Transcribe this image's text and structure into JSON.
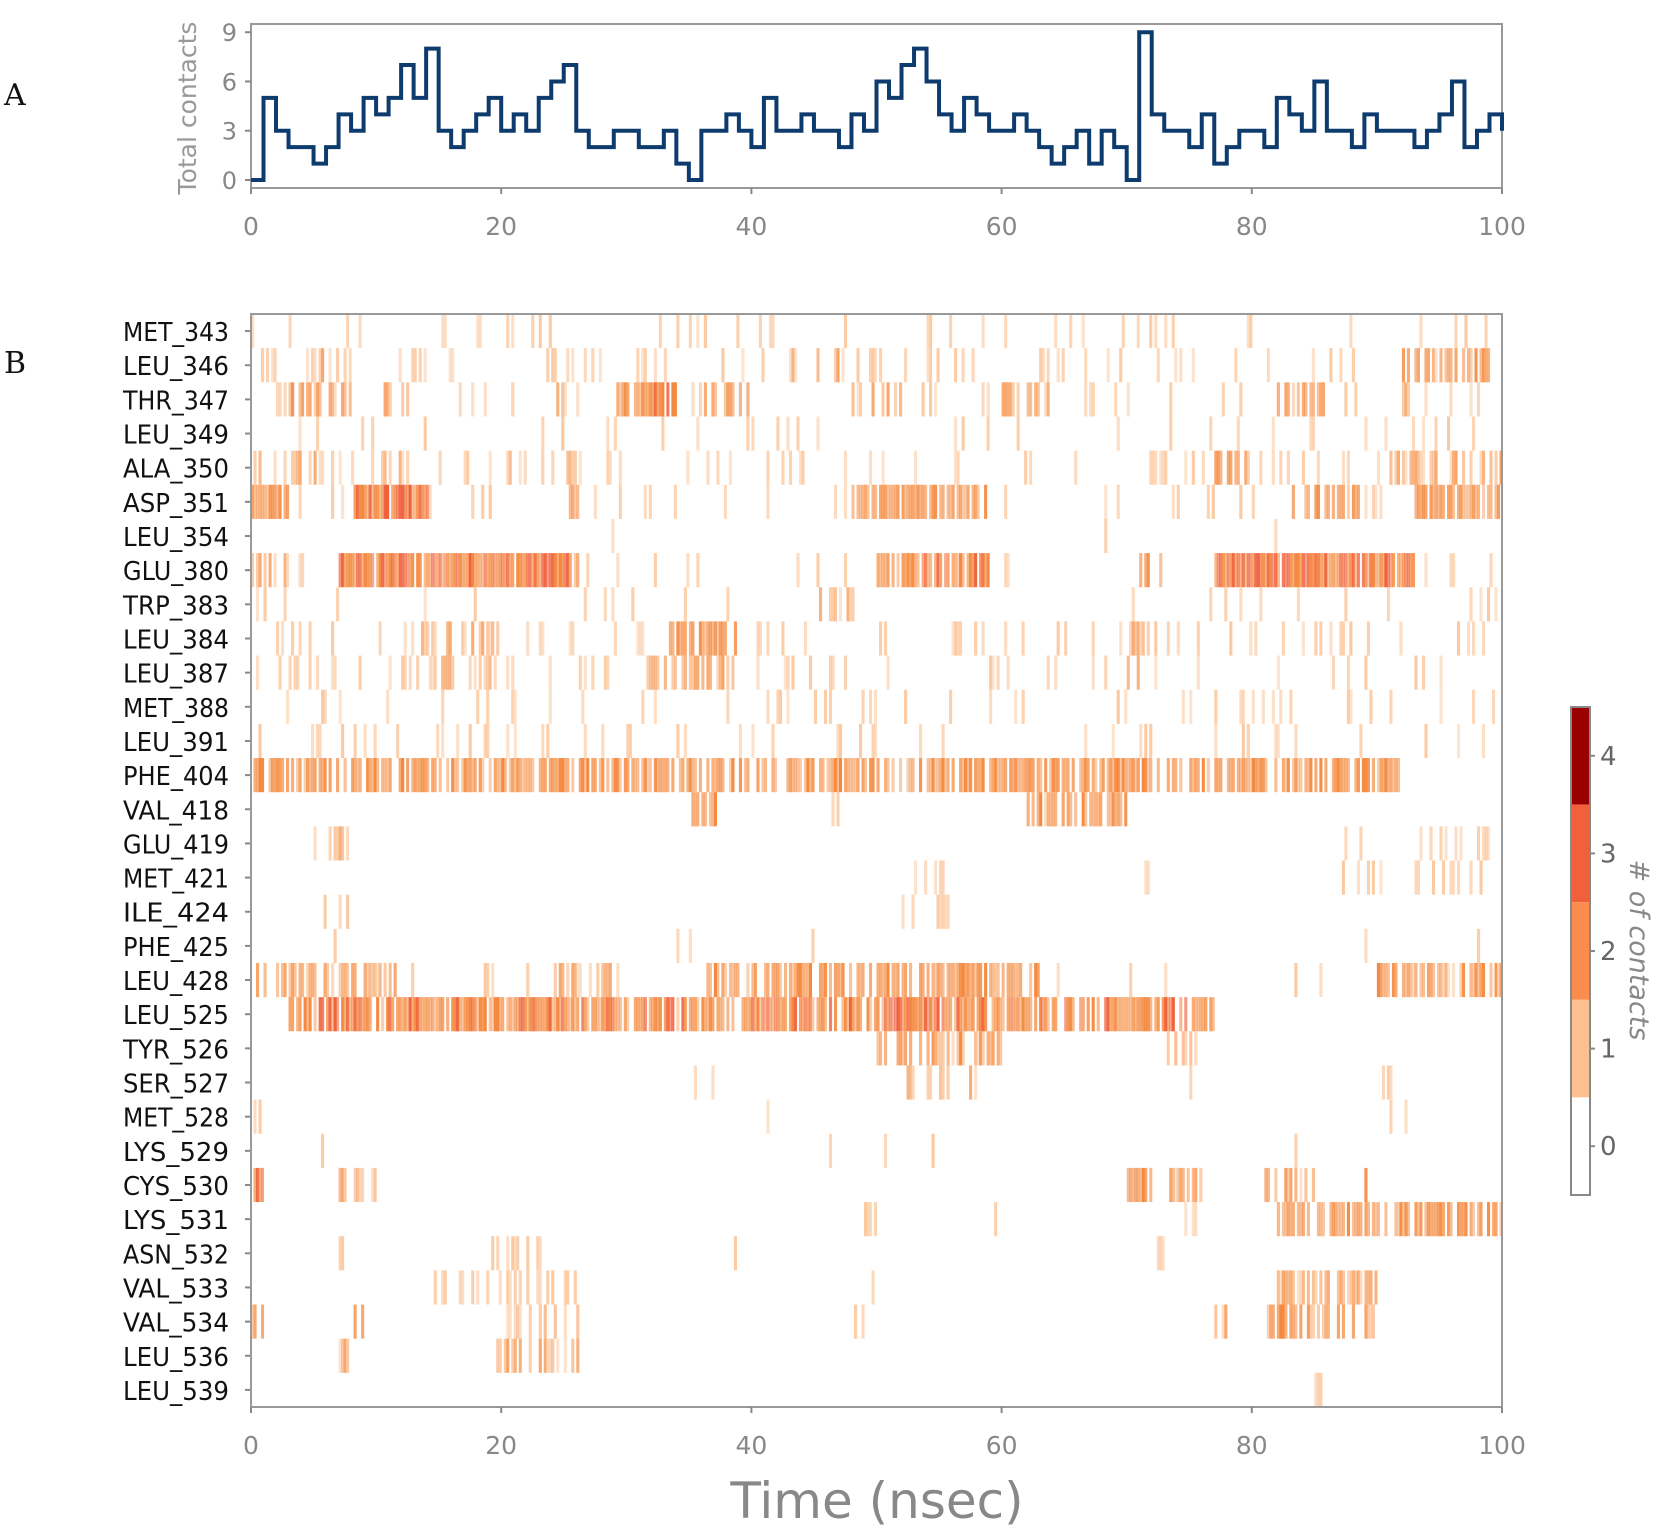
{
  "panels": {
    "a": "A",
    "b": "B"
  },
  "chart_data": [
    {
      "type": "line",
      "title": "",
      "xlabel": "",
      "ylabel": "Total contacts",
      "xlim": [
        0,
        100
      ],
      "ylim": [
        0,
        9.5
      ],
      "xticks": [
        "0",
        "20",
        "40",
        "60",
        "80",
        "100"
      ],
      "yticks": [
        "0",
        "3",
        "6",
        "9"
      ],
      "color": "#0d3b6e",
      "x_step": 1,
      "values": [
        0,
        5,
        3,
        2,
        2,
        1,
        2,
        4,
        3,
        5,
        4,
        5,
        7,
        5,
        8,
        3,
        2,
        3,
        4,
        5,
        3,
        4,
        3,
        5,
        6,
        7,
        3,
        2,
        2,
        3,
        3,
        2,
        2,
        3,
        1,
        0,
        3,
        3,
        4,
        3,
        2,
        5,
        3,
        3,
        4,
        3,
        3,
        2,
        4,
        3,
        6,
        5,
        7,
        8,
        6,
        4,
        3,
        5,
        4,
        3,
        3,
        4,
        3,
        2,
        1,
        2,
        3,
        1,
        3,
        2,
        0,
        9,
        4,
        3,
        3,
        2,
        4,
        1,
        2,
        3,
        3,
        2,
        5,
        4,
        3,
        6,
        3,
        3,
        2,
        4,
        3,
        3,
        3,
        2,
        3,
        4,
        6,
        2,
        3,
        4,
        3
      ]
    },
    {
      "type": "heatmap",
      "xlabel": "Time (nsec)",
      "xlim": [
        0,
        100
      ],
      "xticks": [
        "0",
        "20",
        "40",
        "60",
        "80",
        "100"
      ],
      "colorbar": {
        "label": "# of contacts",
        "ticks": [
          "0",
          "1",
          "2",
          "3",
          "4"
        ],
        "colors": [
          "#ffffff",
          "#fdbf8f",
          "#fb8c4e",
          "#f0603a",
          "#990000"
        ]
      },
      "rows": [
        {
          "residue": "MET_343",
          "bg": 0.08,
          "segments": []
        },
        {
          "residue": "LEU_346",
          "bg": 0.12,
          "segments": [
            [
              1,
              8,
              0.4
            ],
            [
              10,
              15,
              0.3
            ],
            [
              43,
              47,
              0.5
            ],
            [
              92,
              99,
              0.6
            ]
          ]
        },
        {
          "residue": "THR_347",
          "bg": 0.08,
          "segments": [
            [
              3,
              8,
              0.6
            ],
            [
              10,
              12,
              0.5
            ],
            [
              24,
              26,
              0.5
            ],
            [
              29,
              34,
              0.8
            ],
            [
              36,
              40,
              0.6
            ],
            [
              48,
              52,
              0.4
            ],
            [
              60,
              64,
              0.5
            ],
            [
              82,
              86,
              0.6
            ],
            [
              91,
              94,
              0.5
            ]
          ]
        },
        {
          "residue": "LEU_349",
          "bg": 0.08,
          "segments": []
        },
        {
          "residue": "ALA_350",
          "bg": 0.1,
          "segments": [
            [
              0,
              12,
              0.4
            ],
            [
              20,
              26,
              0.4
            ],
            [
              77,
              80,
              0.6
            ],
            [
              91,
              100,
              0.5
            ]
          ]
        },
        {
          "residue": "ASP_351",
          "bg": 0.08,
          "segments": [
            [
              0,
              3,
              0.7
            ],
            [
              8,
              14,
              0.9
            ],
            [
              25,
              26,
              0.8
            ],
            [
              48,
              59,
              0.7
            ],
            [
              83,
              89,
              0.6
            ],
            [
              93,
              100,
              0.7
            ]
          ]
        },
        {
          "residue": "LEU_354",
          "bg": 0.01,
          "segments": [
            [
              9,
              12,
              0.2
            ]
          ]
        },
        {
          "residue": "GLU_380",
          "bg": 0.05,
          "segments": [
            [
              0,
              3,
              0.5
            ],
            [
              7,
              26,
              0.9
            ],
            [
              50,
              59,
              0.8
            ],
            [
              71,
              73,
              0.6
            ],
            [
              77,
              93,
              0.9
            ]
          ]
        },
        {
          "residue": "TRP_383",
          "bg": 0.06,
          "segments": [
            [
              45,
              48,
              0.4
            ],
            [
              97,
              100,
              0.3
            ]
          ]
        },
        {
          "residue": "LEU_384",
          "bg": 0.12,
          "segments": [
            [
              13,
              20,
              0.5
            ],
            [
              33,
              39,
              0.7
            ],
            [
              70,
              72,
              0.5
            ]
          ]
        },
        {
          "residue": "LEU_387",
          "bg": 0.1,
          "segments": [
            [
              3,
              10,
              0.3
            ],
            [
              13,
              20,
              0.4
            ],
            [
              31,
              39,
              0.6
            ],
            [
              70,
              71,
              0.7
            ]
          ]
        },
        {
          "residue": "MET_388",
          "bg": 0.1,
          "segments": []
        },
        {
          "residue": "LEU_391",
          "bg": 0.1,
          "segments": []
        },
        {
          "residue": "PHE_404",
          "bg": 0.0,
          "segments": [
            [
              0,
              92,
              0.7
            ]
          ]
        },
        {
          "residue": "VAL_418",
          "bg": 0.0,
          "segments": [
            [
              35,
              37,
              0.7
            ],
            [
              62,
              70,
              0.6
            ],
            [
              46,
              47,
              0.3
            ]
          ]
        },
        {
          "residue": "GLU_419",
          "bg": 0.0,
          "segments": [
            [
              5,
              8,
              0.4
            ],
            [
              87,
              99,
              0.2
            ]
          ]
        },
        {
          "residue": "MET_421",
          "bg": 0.0,
          "segments": [
            [
              53,
              56,
              0.2
            ],
            [
              87,
              99,
              0.2
            ],
            [
              71,
              72,
              0.3
            ]
          ]
        },
        {
          "residue": "ILE_424",
          "bg": 0.0,
          "segments": [
            [
              5,
              8,
              0.2
            ],
            [
              52,
              56,
              0.3
            ]
          ]
        },
        {
          "residue": "PHE_425",
          "bg": 0.01,
          "segments": [
            [
              6,
              7,
              0.3
            ]
          ]
        },
        {
          "residue": "LEU_428",
          "bg": 0.03,
          "segments": [
            [
              0,
              12,
              0.5
            ],
            [
              18,
              20,
              0.4
            ],
            [
              24,
              30,
              0.5
            ],
            [
              36,
              63,
              0.7
            ],
            [
              90,
              100,
              0.6
            ]
          ]
        },
        {
          "residue": "LEU_525",
          "bg": 0.0,
          "segments": [
            [
              3,
              77,
              0.8
            ],
            [
              51,
              55,
              1.0
            ]
          ]
        },
        {
          "residue": "TYR_526",
          "bg": 0.0,
          "segments": [
            [
              50,
              60,
              0.6
            ],
            [
              73,
              77,
              0.4
            ]
          ]
        },
        {
          "residue": "SER_527",
          "bg": 0.0,
          "segments": [
            [
              75,
              77,
              0.3
            ],
            [
              35,
              37,
              0.3
            ],
            [
              52,
              58,
              0.4
            ],
            [
              90,
              92,
              0.3
            ]
          ]
        },
        {
          "residue": "MET_528",
          "bg": 0.005,
          "segments": [
            [
              0,
              1,
              0.3
            ],
            [
              28,
              29,
              0.3
            ],
            [
              91,
              93,
              0.3
            ]
          ]
        },
        {
          "residue": "LYS_529",
          "bg": 0.005,
          "segments": [
            [
              50,
              51,
              0.3
            ]
          ]
        },
        {
          "residue": "CYS_530",
          "bg": 0.0,
          "segments": [
            [
              0,
              1,
              0.9
            ],
            [
              7,
              10,
              0.5
            ],
            [
              70,
              72,
              0.8
            ],
            [
              73,
              76,
              0.5
            ],
            [
              81,
              85,
              0.6
            ],
            [
              89,
              90,
              0.6
            ]
          ]
        },
        {
          "residue": "LYS_531",
          "bg": 0.0,
          "segments": [
            [
              74,
              76,
              0.4
            ],
            [
              82,
              100,
              0.7
            ],
            [
              49,
              50,
              0.3
            ],
            [
              59,
              60,
              0.3
            ]
          ]
        },
        {
          "residue": "ASN_532",
          "bg": 0.0,
          "segments": [
            [
              7,
              8,
              0.3
            ],
            [
              19,
              23,
              0.3
            ],
            [
              38,
              39,
              0.3
            ],
            [
              72,
              73,
              0.3
            ]
          ]
        },
        {
          "residue": "VAL_533",
          "bg": 0.0,
          "segments": [
            [
              14,
              26,
              0.3
            ],
            [
              49,
              50,
              0.3
            ],
            [
              82,
              90,
              0.5
            ]
          ]
        },
        {
          "residue": "VAL_534",
          "bg": 0.0,
          "segments": [
            [
              0,
              1,
              0.6
            ],
            [
              8,
              9,
              0.6
            ],
            [
              20,
              26,
              0.4
            ],
            [
              48,
              49,
              0.3
            ],
            [
              77,
              78,
              0.4
            ],
            [
              81,
              90,
              0.6
            ]
          ]
        },
        {
          "residue": "LEU_536",
          "bg": 0.0,
          "segments": [
            [
              7,
              8,
              0.5
            ],
            [
              19,
              26,
              0.5
            ]
          ]
        },
        {
          "residue": "LEU_539",
          "bg": 0.0,
          "segments": [
            [
              85,
              86,
              0.3
            ]
          ]
        }
      ]
    }
  ]
}
